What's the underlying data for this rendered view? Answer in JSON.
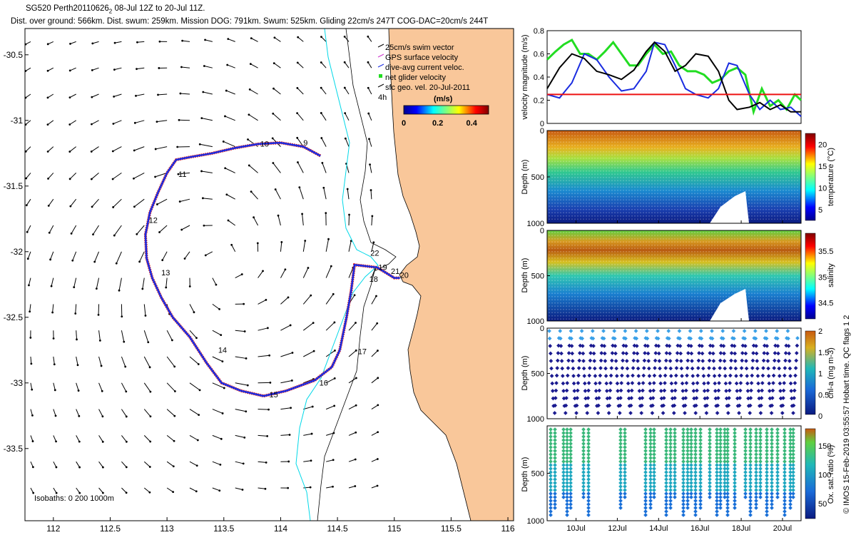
{
  "header": {
    "title_main": "SG520 Perth20110626",
    "title_sub": "2",
    "title_rest": " 08-Jul 12Z to 20-Jul 11Z.",
    "stats": "Dist. over ground: 566km. Dist. swum: 259km. Mission DOG: 791km. Swum: 525km. Gliding 22cm/s 247T COG-DAC=20cm/s 244T"
  },
  "colors": {
    "land": "#f9c79a",
    "isobath200": "#000000",
    "isobath0": "#00d8e8",
    "track_gps": "#dd1a1a",
    "track_dac": "#1a2ce0",
    "vel_black": "#000000",
    "vel_green": "#22dd22",
    "vel_blue": "#1a2ce0",
    "vel_red": "#ee1111"
  },
  "chart_data": [
    {
      "type": "map",
      "title": "glider track and currents",
      "xlim": [
        111.75,
        116.05
      ],
      "ylim": [
        -34.05,
        -30.3
      ],
      "xticks": [
        "112",
        "112.5",
        "113",
        "113.5",
        "114",
        "114.5",
        "115",
        "115.5",
        "116"
      ],
      "xtick_values": [
        112,
        112.5,
        113,
        113.5,
        114,
        114.5,
        115,
        115.5,
        116
      ],
      "yticks": [
        "-30.5",
        "-31",
        "-31.5",
        "-32",
        "-32.5",
        "-33",
        "-33.5"
      ],
      "ytick_values": [
        -30.5,
        -31,
        -31.5,
        -32,
        -32.5,
        -33,
        -33.5
      ],
      "legend": [
        "25cm/s swim vector",
        "GPS surface velocity",
        "dive-avg current veloc.",
        "net glider velocity",
        "sfc geo. vel. 20-Jul-2011"
      ],
      "legend_extra": "4h",
      "colorbar_title": "(m/s)",
      "colorbar_ticks": [
        "0",
        "0.2",
        "0.4"
      ],
      "colorbar_range": [
        0,
        0.5
      ],
      "isobath_label": "Isobaths: 0   200   1000m",
      "track": [
        [
          114.35,
          -31.27
        ],
        [
          114.2,
          -31.2
        ],
        [
          114.0,
          -31.17
        ],
        [
          113.8,
          -31.18
        ],
        [
          113.6,
          -31.21
        ],
        [
          113.4,
          -31.25
        ],
        [
          113.2,
          -31.28
        ],
        [
          113.08,
          -31.3
        ],
        [
          113.0,
          -31.4
        ],
        [
          112.92,
          -31.55
        ],
        [
          112.85,
          -31.7
        ],
        [
          112.81,
          -31.87
        ],
        [
          112.82,
          -32.05
        ],
        [
          112.87,
          -32.2
        ],
        [
          112.95,
          -32.35
        ],
        [
          113.05,
          -32.5
        ],
        [
          113.2,
          -32.65
        ],
        [
          113.35,
          -32.85
        ],
        [
          113.48,
          -33.0
        ],
        [
          113.65,
          -33.06
        ],
        [
          113.85,
          -33.1
        ],
        [
          114.05,
          -33.06
        ],
        [
          114.3,
          -32.98
        ],
        [
          114.45,
          -32.88
        ],
        [
          114.52,
          -32.75
        ],
        [
          114.58,
          -32.5
        ],
        [
          114.62,
          -32.3
        ],
        [
          114.65,
          -32.1
        ],
        [
          114.85,
          -32.12
        ],
        [
          115.0,
          -32.2
        ],
        [
          115.05,
          -32.2
        ]
      ],
      "day_labels": [
        {
          "label": "9",
          "lon": 114.2,
          "lat": -31.19
        },
        {
          "label": "10",
          "lon": 113.82,
          "lat": -31.2
        },
        {
          "label": "11",
          "lon": 113.1,
          "lat": -31.43
        },
        {
          "label": "12",
          "lon": 112.84,
          "lat": -31.78
        },
        {
          "label": "13",
          "lon": 112.95,
          "lat": -32.18
        },
        {
          "label": "14",
          "lon": 113.45,
          "lat": -32.77
        },
        {
          "label": "15",
          "lon": 113.9,
          "lat": -33.11
        },
        {
          "label": "16",
          "lon": 114.34,
          "lat": -33.02
        },
        {
          "label": "17",
          "lon": 114.68,
          "lat": -32.78
        },
        {
          "label": "18",
          "lon": 114.78,
          "lat": -32.23
        },
        {
          "label": "19",
          "lon": 114.86,
          "lat": -32.14
        },
        {
          "label": "20",
          "lon": 115.05,
          "lat": -32.2
        },
        {
          "label": "21",
          "lon": 114.97,
          "lat": -32.17
        },
        {
          "label": "22",
          "lon": 114.79,
          "lat": -32.03
        }
      ]
    },
    {
      "type": "line",
      "ylabel": "velocity magnitude (m/s)",
      "ylim": [
        0,
        0.8
      ],
      "yticks": [
        "0",
        "0.2",
        "0.4",
        "0.6",
        "0.8"
      ],
      "ytick_values": [
        0,
        0.2,
        0.4,
        0.6,
        0.8
      ],
      "xlim": [
        8.6,
        20.9
      ],
      "series": [
        {
          "name": "net",
          "color": "#000000",
          "x": [
            8.6,
            9.2,
            9.8,
            10.4,
            11.0,
            11.6,
            12.2,
            12.8,
            13.4,
            13.8,
            14.3,
            14.8,
            15.3,
            15.8,
            16.4,
            16.9,
            17.4,
            17.8,
            18.4,
            18.9,
            19.4,
            19.9,
            20.4,
            20.9
          ],
          "y": [
            0.3,
            0.48,
            0.6,
            0.56,
            0.45,
            0.42,
            0.38,
            0.46,
            0.62,
            0.7,
            0.62,
            0.45,
            0.5,
            0.6,
            0.58,
            0.45,
            0.2,
            0.12,
            0.14,
            0.18,
            0.12,
            0.16,
            0.1,
            0.1
          ]
        },
        {
          "name": "dac",
          "color": "#1a2ce0",
          "x": [
            8.6,
            9.2,
            9.8,
            10.4,
            11.0,
            11.6,
            12.2,
            12.8,
            13.4,
            13.8,
            14.3,
            14.8,
            15.3,
            15.8,
            16.4,
            16.9,
            17.4,
            17.8,
            18.4,
            18.9,
            19.4,
            19.9,
            20.4,
            20.9
          ],
          "y": [
            0.25,
            0.22,
            0.35,
            0.6,
            0.55,
            0.4,
            0.28,
            0.3,
            0.45,
            0.7,
            0.68,
            0.5,
            0.3,
            0.25,
            0.22,
            0.3,
            0.52,
            0.5,
            0.25,
            0.12,
            0.2,
            0.12,
            0.14,
            0.06
          ]
        },
        {
          "name": "gps",
          "color": "#22dd22",
          "x": [
            8.6,
            9.0,
            9.4,
            9.8,
            10.2,
            10.6,
            11.0,
            11.4,
            11.8,
            12.2,
            12.6,
            13.0,
            13.4,
            13.8,
            14.2,
            14.6,
            15.0,
            15.4,
            15.8,
            16.2,
            16.6,
            17.0,
            17.4,
            17.8,
            18.2,
            18.6,
            19.0,
            19.4,
            19.8,
            20.2,
            20.6,
            20.9
          ],
          "y": [
            0.55,
            0.62,
            0.68,
            0.72,
            0.6,
            0.6,
            0.55,
            0.62,
            0.7,
            0.6,
            0.5,
            0.5,
            0.6,
            0.68,
            0.6,
            0.62,
            0.5,
            0.45,
            0.45,
            0.42,
            0.35,
            0.38,
            0.45,
            0.48,
            0.42,
            0.1,
            0.3,
            0.15,
            0.2,
            0.12,
            0.25,
            0.2
          ]
        },
        {
          "name": "swim",
          "color": "#ee1111",
          "x": [
            8.6,
            20.9
          ],
          "y": [
            0.25,
            0.25
          ]
        }
      ]
    },
    {
      "type": "heatmap",
      "ylabel": "Depth (m)",
      "colorbar_label": "temperature (°C)",
      "colorbar_ticks": [
        "5",
        "10",
        "15",
        "20"
      ],
      "colorbar_tick_values": [
        5,
        10,
        15,
        20
      ],
      "clim": [
        2.5,
        22.5
      ],
      "ylim": [
        1000,
        0
      ],
      "yticks": [
        "0",
        "500",
        "1000"
      ],
      "ytick_values": [
        0,
        500,
        1000
      ]
    },
    {
      "type": "heatmap",
      "ylabel": "Depth (m)",
      "colorbar_label": "salinity",
      "colorbar_ticks": [
        "34.5",
        "35",
        "35.5"
      ],
      "colorbar_tick_values": [
        34.5,
        35,
        35.5
      ],
      "clim": [
        34.2,
        35.85
      ],
      "ylim": [
        1000,
        0
      ],
      "yticks": [
        "0",
        "500",
        "1000"
      ],
      "ytick_values": [
        0,
        500,
        1000
      ]
    },
    {
      "type": "scatter",
      "ylabel": "Depth (m)",
      "colorbar_label": "chl-a (mg m-3)",
      "colorbar_ticks": [
        "0",
        "0.5",
        "1",
        "1.5",
        "2"
      ],
      "colorbar_tick_values": [
        0,
        0.5,
        1,
        1.5,
        2
      ],
      "clim": [
        0,
        2
      ],
      "ylim": [
        1000,
        0
      ],
      "yticks": [
        "0",
        "500",
        "1000"
      ],
      "ytick_values": [
        0,
        500,
        1000
      ]
    },
    {
      "type": "scatter",
      "ylabel": "Depth (m)",
      "colorbar_label": "Ox. sat. ratio (%)",
      "colorbar_ticks": [
        "50",
        "100",
        "150"
      ],
      "colorbar_tick_values": [
        50,
        100,
        150
      ],
      "clim": [
        25,
        180
      ],
      "ylim": [
        1000,
        0
      ],
      "yticks": [
        "500",
        "1000"
      ],
      "ytick_values": [
        500,
        1000
      ],
      "xlim": [
        8.6,
        20.9
      ],
      "xticks": [
        "10Jul",
        "12Jul",
        "14Jul",
        "16Jul",
        "18Jul",
        "20Jul"
      ],
      "xtick_values": [
        10,
        12,
        14,
        16,
        18,
        20
      ]
    }
  ],
  "footer": {
    "stamp": "© IMOS 15-Feb-2019 03:55:57 Hobart time. QC flags 1  2"
  }
}
